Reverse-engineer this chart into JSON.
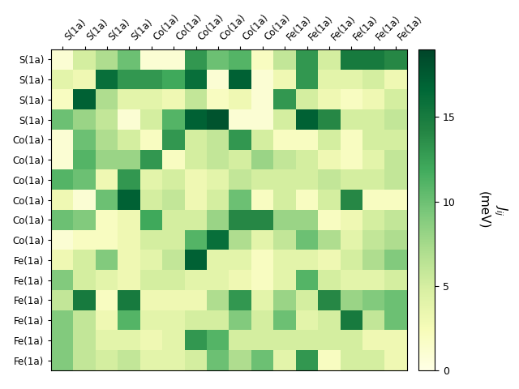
{
  "row_labels": [
    "S(1a)",
    "S(1a)",
    "S(1a)",
    "S(1a)",
    "Co(1a)",
    "Co(1a)",
    "Co(1a)",
    "Co(1a)",
    "Co(1a)",
    "Co(1a)",
    "Fe(1a)",
    "Fe(1a)",
    "Fe(1a)",
    "Fe(1a)",
    "Fe(1a)",
    "Fe(1a)"
  ],
  "col_labels": [
    "S(1a)",
    "S(1a)",
    "S(1a)",
    "S(1a)",
    "Co(1a)",
    "Co(1a)",
    "Co(1a)",
    "Co(1a)",
    "Co(1a)",
    "Co(1a)",
    "Fe(1a)",
    "Fe(1a)",
    "Fe(1a)",
    "Fe(1a)",
    "Fe(1a)",
    "Fe(1a)"
  ],
  "matrix": [
    [
      1,
      5,
      7,
      10,
      1,
      1,
      13,
      10,
      11,
      2,
      6,
      13,
      5,
      15,
      15,
      14
    ],
    [
      4,
      3,
      16,
      13,
      13,
      12,
      16,
      1,
      17,
      1,
      3,
      13,
      4,
      4,
      5,
      3
    ],
    [
      2,
      17,
      7,
      4,
      4,
      3,
      6,
      2,
      3,
      1,
      13,
      5,
      3,
      2,
      3,
      5
    ],
    [
      10,
      8,
      6,
      1,
      5,
      11,
      17,
      18,
      1,
      1,
      5,
      17,
      14,
      5,
      5,
      6
    ],
    [
      1,
      10,
      7,
      5,
      2,
      13,
      5,
      6,
      13,
      5,
      2,
      2,
      5,
      2,
      5,
      5
    ],
    [
      1,
      11,
      8,
      8,
      13,
      2,
      5,
      6,
      5,
      8,
      6,
      5,
      3,
      2,
      4,
      6
    ],
    [
      11,
      10,
      3,
      13,
      4,
      5,
      3,
      4,
      6,
      5,
      5,
      5,
      6,
      5,
      5,
      6
    ],
    [
      3,
      1,
      10,
      17,
      5,
      6,
      3,
      5,
      10,
      2,
      5,
      2,
      5,
      14,
      2,
      2
    ],
    [
      10,
      9,
      2,
      3,
      12,
      5,
      5,
      8,
      14,
      14,
      8,
      8,
      2,
      3,
      5,
      6
    ],
    [
      1,
      2,
      2,
      3,
      5,
      5,
      11,
      16,
      7,
      4,
      6,
      10,
      7,
      4,
      6,
      7
    ],
    [
      3,
      5,
      9,
      3,
      4,
      6,
      17,
      4,
      4,
      2,
      4,
      4,
      3,
      5,
      7,
      9
    ],
    [
      9,
      5,
      4,
      3,
      5,
      5,
      4,
      4,
      3,
      2,
      4,
      11,
      5,
      4,
      4,
      5
    ],
    [
      6,
      15,
      2,
      15,
      3,
      3,
      3,
      7,
      13,
      4,
      8,
      5,
      14,
      8,
      9,
      10
    ],
    [
      9,
      6,
      3,
      11,
      4,
      4,
      5,
      5,
      9,
      5,
      10,
      4,
      5,
      15,
      6,
      10
    ],
    [
      9,
      6,
      4,
      4,
      3,
      4,
      13,
      11,
      5,
      5,
      5,
      5,
      5,
      5,
      3,
      3
    ],
    [
      9,
      6,
      5,
      6,
      4,
      4,
      5,
      10,
      7,
      10,
      4,
      13,
      2,
      5,
      5,
      3
    ]
  ],
  "vmin": 0,
  "vmax": 19,
  "cbar_ticks": [
    0,
    5,
    10,
    15
  ],
  "cbar_label_line1": "$J_{ij}$",
  "cbar_label_line2": "(meV)",
  "cmap": "YlGn",
  "figsize": [
    6.4,
    4.8
  ],
  "dpi": 100
}
